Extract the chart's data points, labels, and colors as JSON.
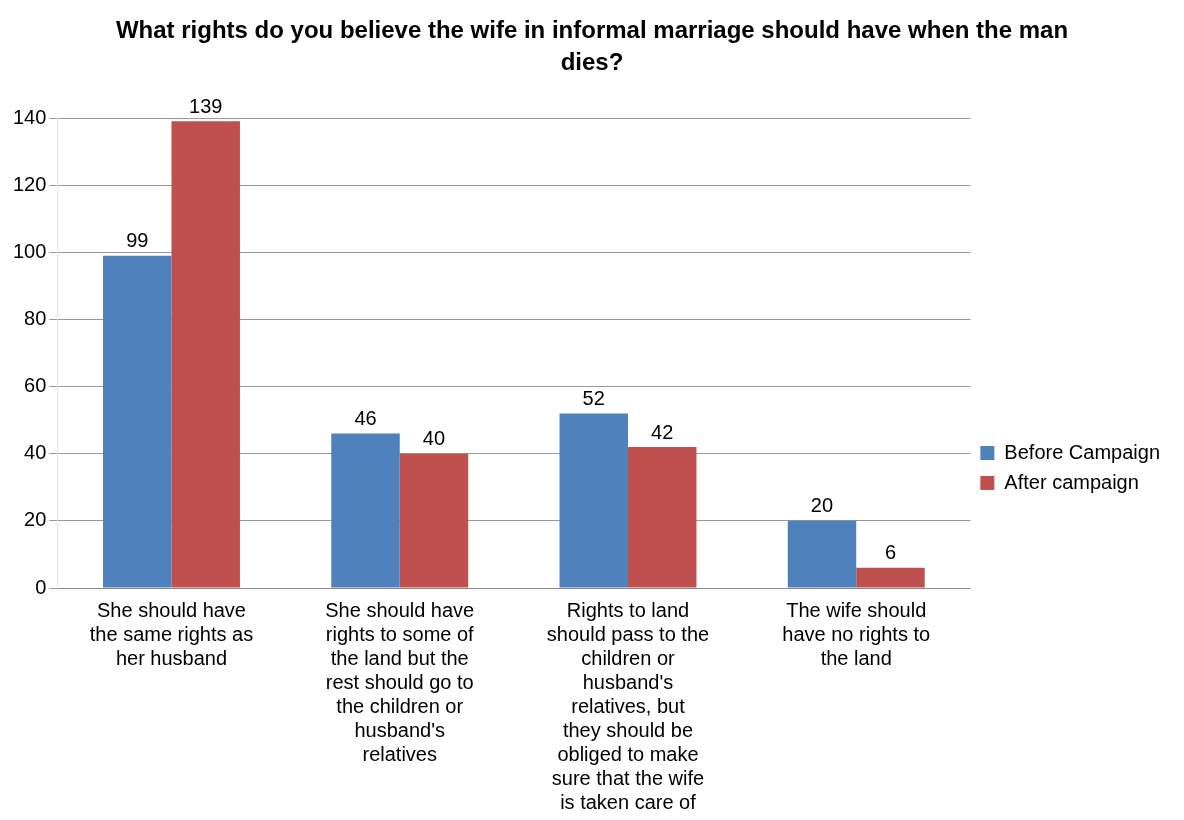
{
  "chart_data": {
    "type": "bar",
    "title": "What rights do you believe the wife in informal marriage  should have when the man dies?",
    "categories": [
      "She should have the same rights as her husband",
      "She should have rights to some of the land but the rest should go to the children or husband's relatives",
      "Rights to land should pass to the children or husband's relatives, but they should be obliged to make sure that the wife is taken care of",
      "The wife should have no rights to the land"
    ],
    "series": [
      {
        "name": "Before Campaign",
        "color": "#4f81bd",
        "values": [
          99,
          46,
          52,
          20
        ]
      },
      {
        "name": "After campaign",
        "color": "#c0504d",
        "values": [
          139,
          40,
          42,
          6
        ]
      }
    ],
    "ylim": [
      0,
      140
    ],
    "yticks": [
      0,
      20,
      40,
      60,
      80,
      100,
      120,
      140
    ],
    "grid": "y",
    "legend": "right",
    "data_labels": true
  }
}
